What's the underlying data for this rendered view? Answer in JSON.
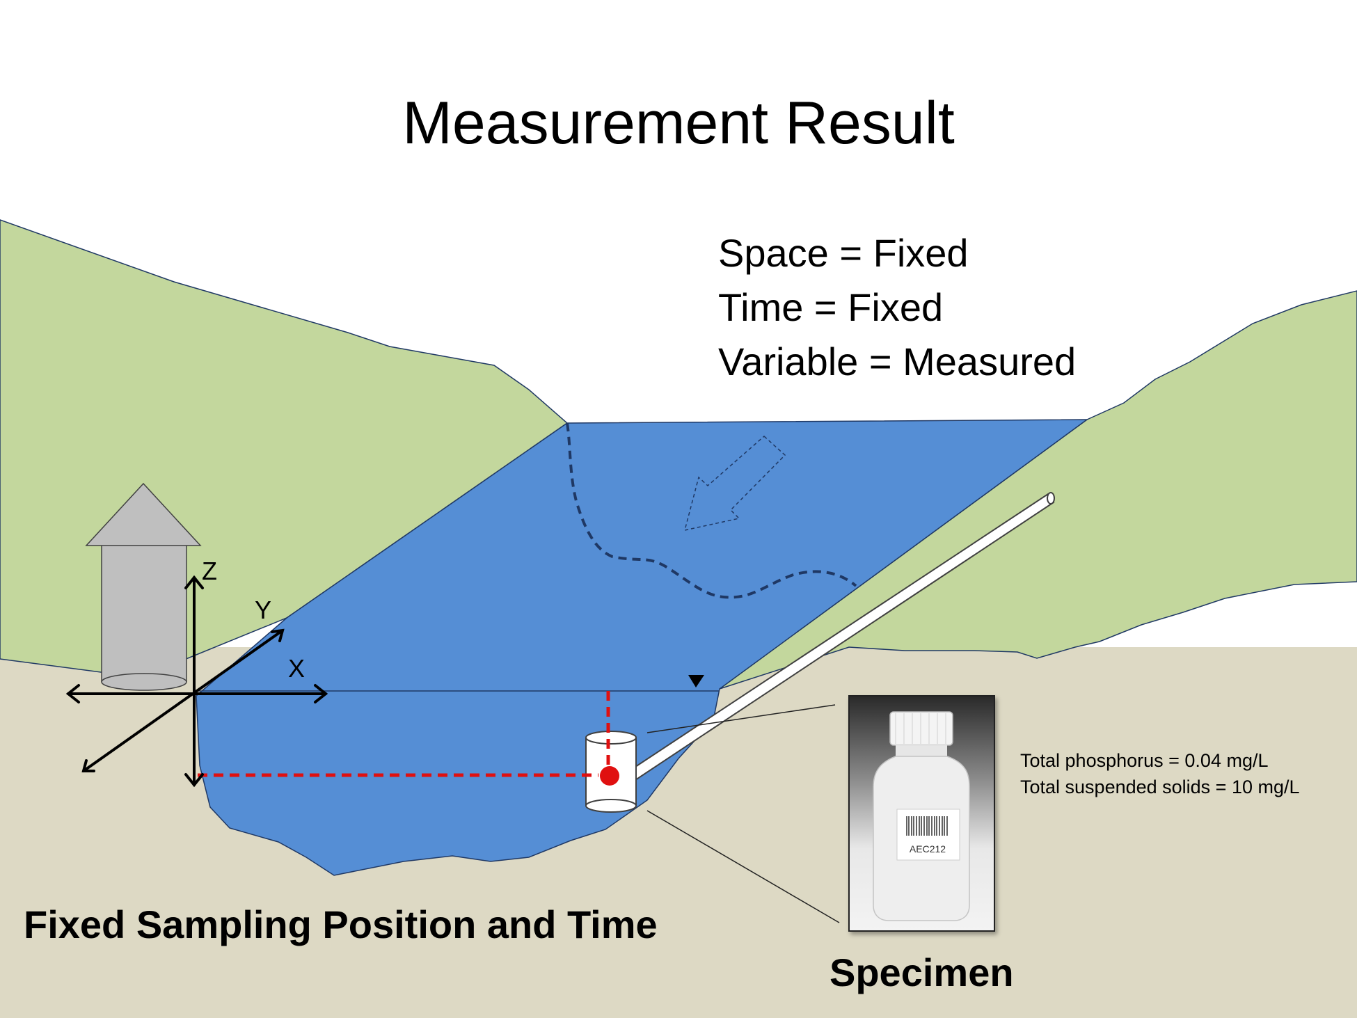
{
  "title": "Measurement Result",
  "conditions": [
    "Space = Fixed",
    "Time = Fixed",
    "Variable = Measured"
  ],
  "axes": {
    "z": "Z",
    "y": "Y",
    "x": "X"
  },
  "caption": "Fixed Sampling Position and Time",
  "specimen_label": "Specimen",
  "results": [
    "Total phosphorus = 0.04 mg/L",
    "Total suspended solids = 10 mg/L"
  ],
  "bottle_label": "AEC212",
  "colors": {
    "hills": "#c3d79d",
    "ground": "#ddd9c4",
    "water": "#558ed5",
    "sampler_line": "#e01010",
    "house": "#bfbfbf"
  }
}
